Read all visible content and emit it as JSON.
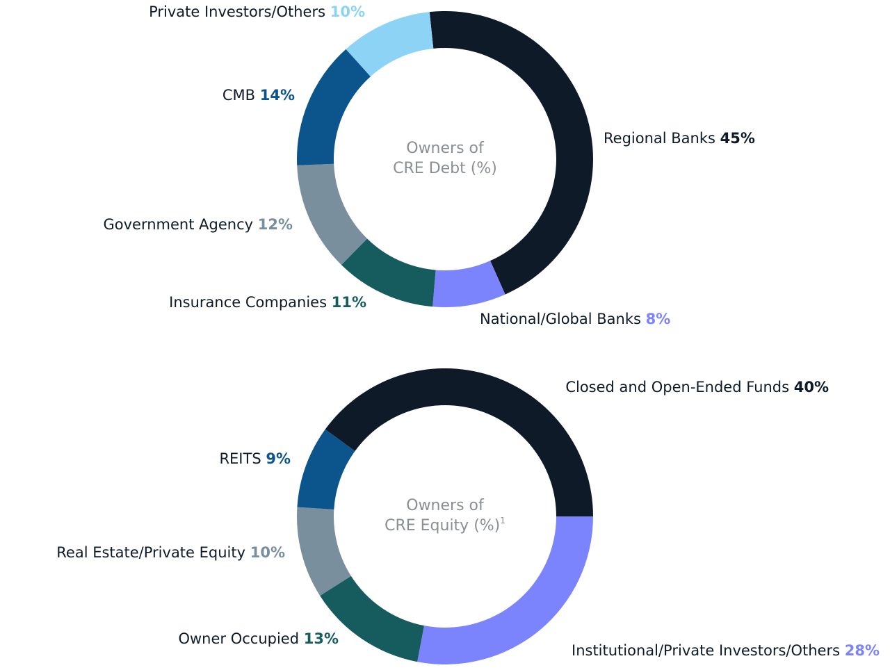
{
  "chart_data": [
    {
      "type": "donut",
      "title": [
        "Owners of",
        "CRE Debt (%)"
      ],
      "categories": [
        "Regional Banks",
        "National/Global Banks",
        "Insurance Companies",
        "Government Agency",
        "CMB",
        "Private Investors/Others"
      ],
      "values": [
        45,
        8,
        11,
        12,
        14,
        10
      ],
      "value_labels": [
        "45%",
        "8%",
        "11%",
        "12%",
        "14%",
        "10%"
      ],
      "colors": [
        "#0e1a28",
        "#7b84fc",
        "#165c5f",
        "#7a8f9e",
        "#0b558c",
        "#8dd3f5"
      ]
    },
    {
      "type": "donut",
      "title": [
        "Owners of",
        "CRE Equity (%)"
      ],
      "title_note": "1",
      "categories": [
        "Closed and Open-Ended Funds",
        "Institutional/Private Investors/Others",
        "Owner Occupied",
        "Real Estate/Private Equity",
        "REITS"
      ],
      "values": [
        40,
        28,
        13,
        10,
        9
      ],
      "value_labels": [
        "40%",
        "28%",
        "13%",
        "10%",
        "9%"
      ],
      "colors": [
        "#0e1a28",
        "#7b84fc",
        "#165c5f",
        "#7a8f9e",
        "#0b558c"
      ]
    }
  ]
}
